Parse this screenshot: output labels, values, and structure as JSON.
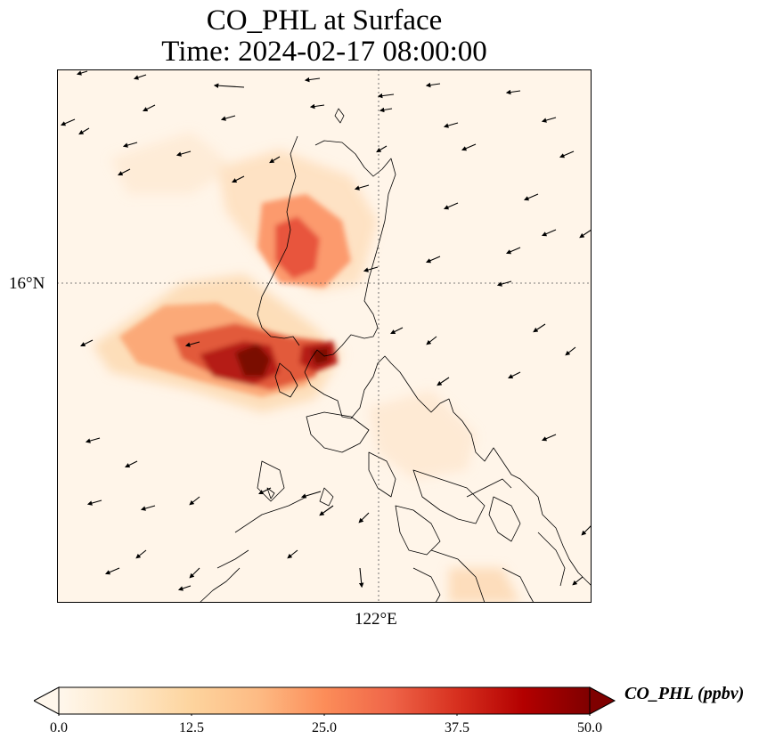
{
  "title": {
    "line1": "CO_PHL at Surface",
    "line2": "Time: 2024-02-17 08:00:00"
  },
  "axes": {
    "lat_tick": "16°N",
    "lon_tick": "122°E"
  },
  "colorbar": {
    "label": "CO_PHL (ppbv)",
    "ticks": [
      "0.0",
      "12.5",
      "25.0",
      "37.5",
      "50.0"
    ],
    "min": 0,
    "max": 50,
    "extend": "both",
    "colormap": "OrRd",
    "colors": [
      "#fff7ec",
      "#fee8c8",
      "#fdd49e",
      "#fdbb84",
      "#fc8d59",
      "#ef6548",
      "#d7301f",
      "#b30000",
      "#7f0000"
    ]
  },
  "map": {
    "background_color": "#fff5e9",
    "gridlines": "dotted",
    "features": [
      "coastlines",
      "wind-vectors"
    ]
  }
}
